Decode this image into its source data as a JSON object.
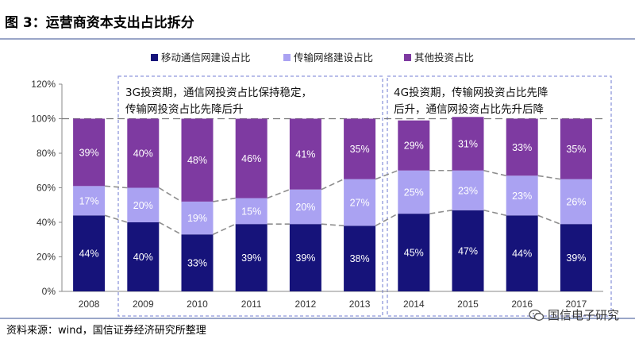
{
  "figure_title": "图 3：运营商资本支出占比拆分",
  "source_note": "资料来源：wind，国信证券经济研究所整理",
  "watermark": "国信电子研究",
  "annotations": {
    "box1": [
      "3G投资期，通信网投资占比保持稳定，",
      "传输网投资占比先降后升"
    ],
    "box2": [
      "4G投资期，传输网投资占比先降",
      "后升，通信网投资占比先升后降"
    ]
  },
  "colors": {
    "series1": "#16137a",
    "series2": "#aaa2f2",
    "series3": "#7e3aa1"
  },
  "chart_data": {
    "type": "bar",
    "stacked": true,
    "categories": [
      "2008",
      "2009",
      "2010",
      "2011",
      "2012",
      "2013",
      "2014",
      "2015",
      "2016",
      "2017"
    ],
    "series": [
      {
        "name": "移动通信网建设占比",
        "values": [
          44,
          40,
          33,
          39,
          39,
          38,
          45,
          47,
          44,
          39
        ]
      },
      {
        "name": "传输网络建设占比",
        "values": [
          17,
          20,
          19,
          15,
          20,
          27,
          25,
          23,
          23,
          26
        ]
      },
      {
        "name": "其他投资占比",
        "values": [
          39,
          40,
          48,
          46,
          41,
          35,
          29,
          31,
          33,
          35
        ]
      }
    ],
    "ylim": [
      0,
      120
    ],
    "yticks": [
      "0%",
      "20%",
      "40%",
      "60%",
      "80%",
      "100%",
      "120%"
    ],
    "legend_position": "top-center"
  }
}
